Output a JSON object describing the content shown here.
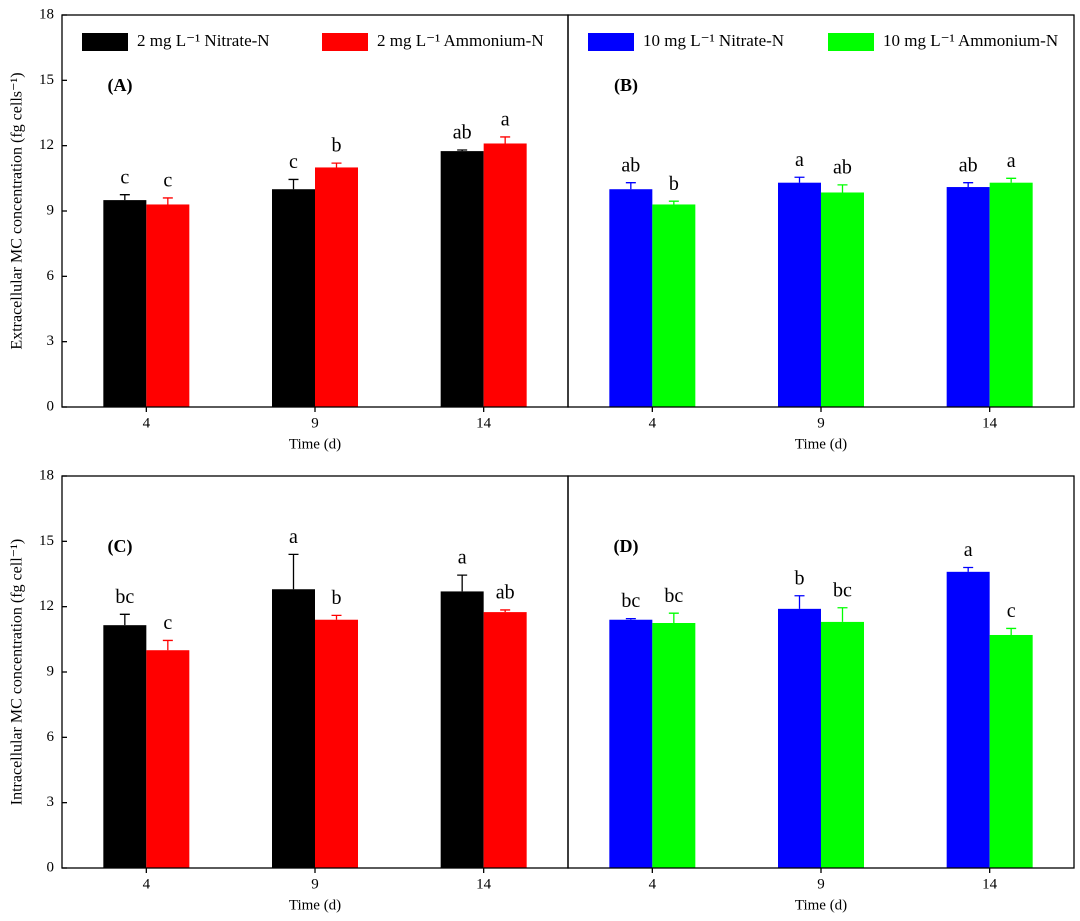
{
  "chart_data": [
    {
      "type": "bar",
      "panel_label": "(A)",
      "ylabel": "Extracellular MC concentration (fg cells⁻¹)",
      "xlabel": "Time (d)",
      "categories": [
        "4",
        "9",
        "14"
      ],
      "ylim": [
        0,
        18
      ],
      "yticks": [
        0,
        3,
        6,
        9,
        12,
        15,
        18
      ],
      "legend": true,
      "legend_location": "upper left",
      "series": [
        {
          "name": "2 mg L⁻¹ Nitrate-N",
          "color": "#000000",
          "values": [
            9.5,
            10.0,
            11.75
          ],
          "errors": [
            0.25,
            0.45,
            0.05
          ],
          "letters": [
            "c",
            "c",
            "ab"
          ]
        },
        {
          "name": "2 mg L⁻¹ Ammonium-N",
          "color": "#ff0000",
          "values": [
            9.3,
            11.0,
            12.1
          ],
          "errors": [
            0.3,
            0.2,
            0.3
          ],
          "letters": [
            "c",
            "b",
            "a"
          ]
        }
      ]
    },
    {
      "type": "bar",
      "panel_label": "(B)",
      "xlabel": "Time (d)",
      "categories": [
        "4",
        "9",
        "14"
      ],
      "ylim": [
        0,
        18
      ],
      "legend": true,
      "legend_location": "upper left",
      "series": [
        {
          "name": "10 mg L⁻¹ Nitrate-N",
          "color": "#0000ff",
          "values": [
            10.0,
            10.3,
            10.1
          ],
          "errors": [
            0.3,
            0.25,
            0.2
          ],
          "letters": [
            "ab",
            "a",
            "ab"
          ]
        },
        {
          "name": "10 mg L⁻¹ Ammonium-N",
          "color": "#00ff00",
          "values": [
            9.3,
            9.85,
            10.3
          ],
          "errors": [
            0.15,
            0.35,
            0.2
          ],
          "letters": [
            "b",
            "ab",
            "a"
          ]
        }
      ]
    },
    {
      "type": "bar",
      "panel_label": "(C)",
      "ylabel": "Intracellular MC concentration (fg cell⁻¹)",
      "xlabel": "Time (d)",
      "categories": [
        "4",
        "9",
        "14"
      ],
      "ylim": [
        0,
        18
      ],
      "yticks": [
        0,
        3,
        6,
        9,
        12,
        15,
        18
      ],
      "legend": false,
      "series": [
        {
          "color": "#000000",
          "values": [
            11.15,
            12.8,
            12.7
          ],
          "errors": [
            0.5,
            1.6,
            0.75
          ],
          "letters": [
            "bc",
            "a",
            "a"
          ]
        },
        {
          "color": "#ff0000",
          "values": [
            10.0,
            11.4,
            11.75
          ],
          "errors": [
            0.45,
            0.2,
            0.1
          ],
          "letters": [
            "c",
            "b",
            "ab"
          ]
        }
      ]
    },
    {
      "type": "bar",
      "panel_label": "(D)",
      "xlabel": "Time (d)",
      "categories": [
        "4",
        "9",
        "14"
      ],
      "ylim": [
        0,
        18
      ],
      "legend": false,
      "series": [
        {
          "color": "#0000ff",
          "values": [
            11.4,
            11.9,
            13.6
          ],
          "errors": [
            0.05,
            0.6,
            0.2
          ],
          "letters": [
            "bc",
            "b",
            "a"
          ]
        },
        {
          "color": "#00ff00",
          "values": [
            11.25,
            11.3,
            10.7
          ],
          "errors": [
            0.45,
            0.65,
            0.3
          ],
          "letters": [
            "bc",
            "bc",
            "c"
          ]
        }
      ]
    }
  ]
}
